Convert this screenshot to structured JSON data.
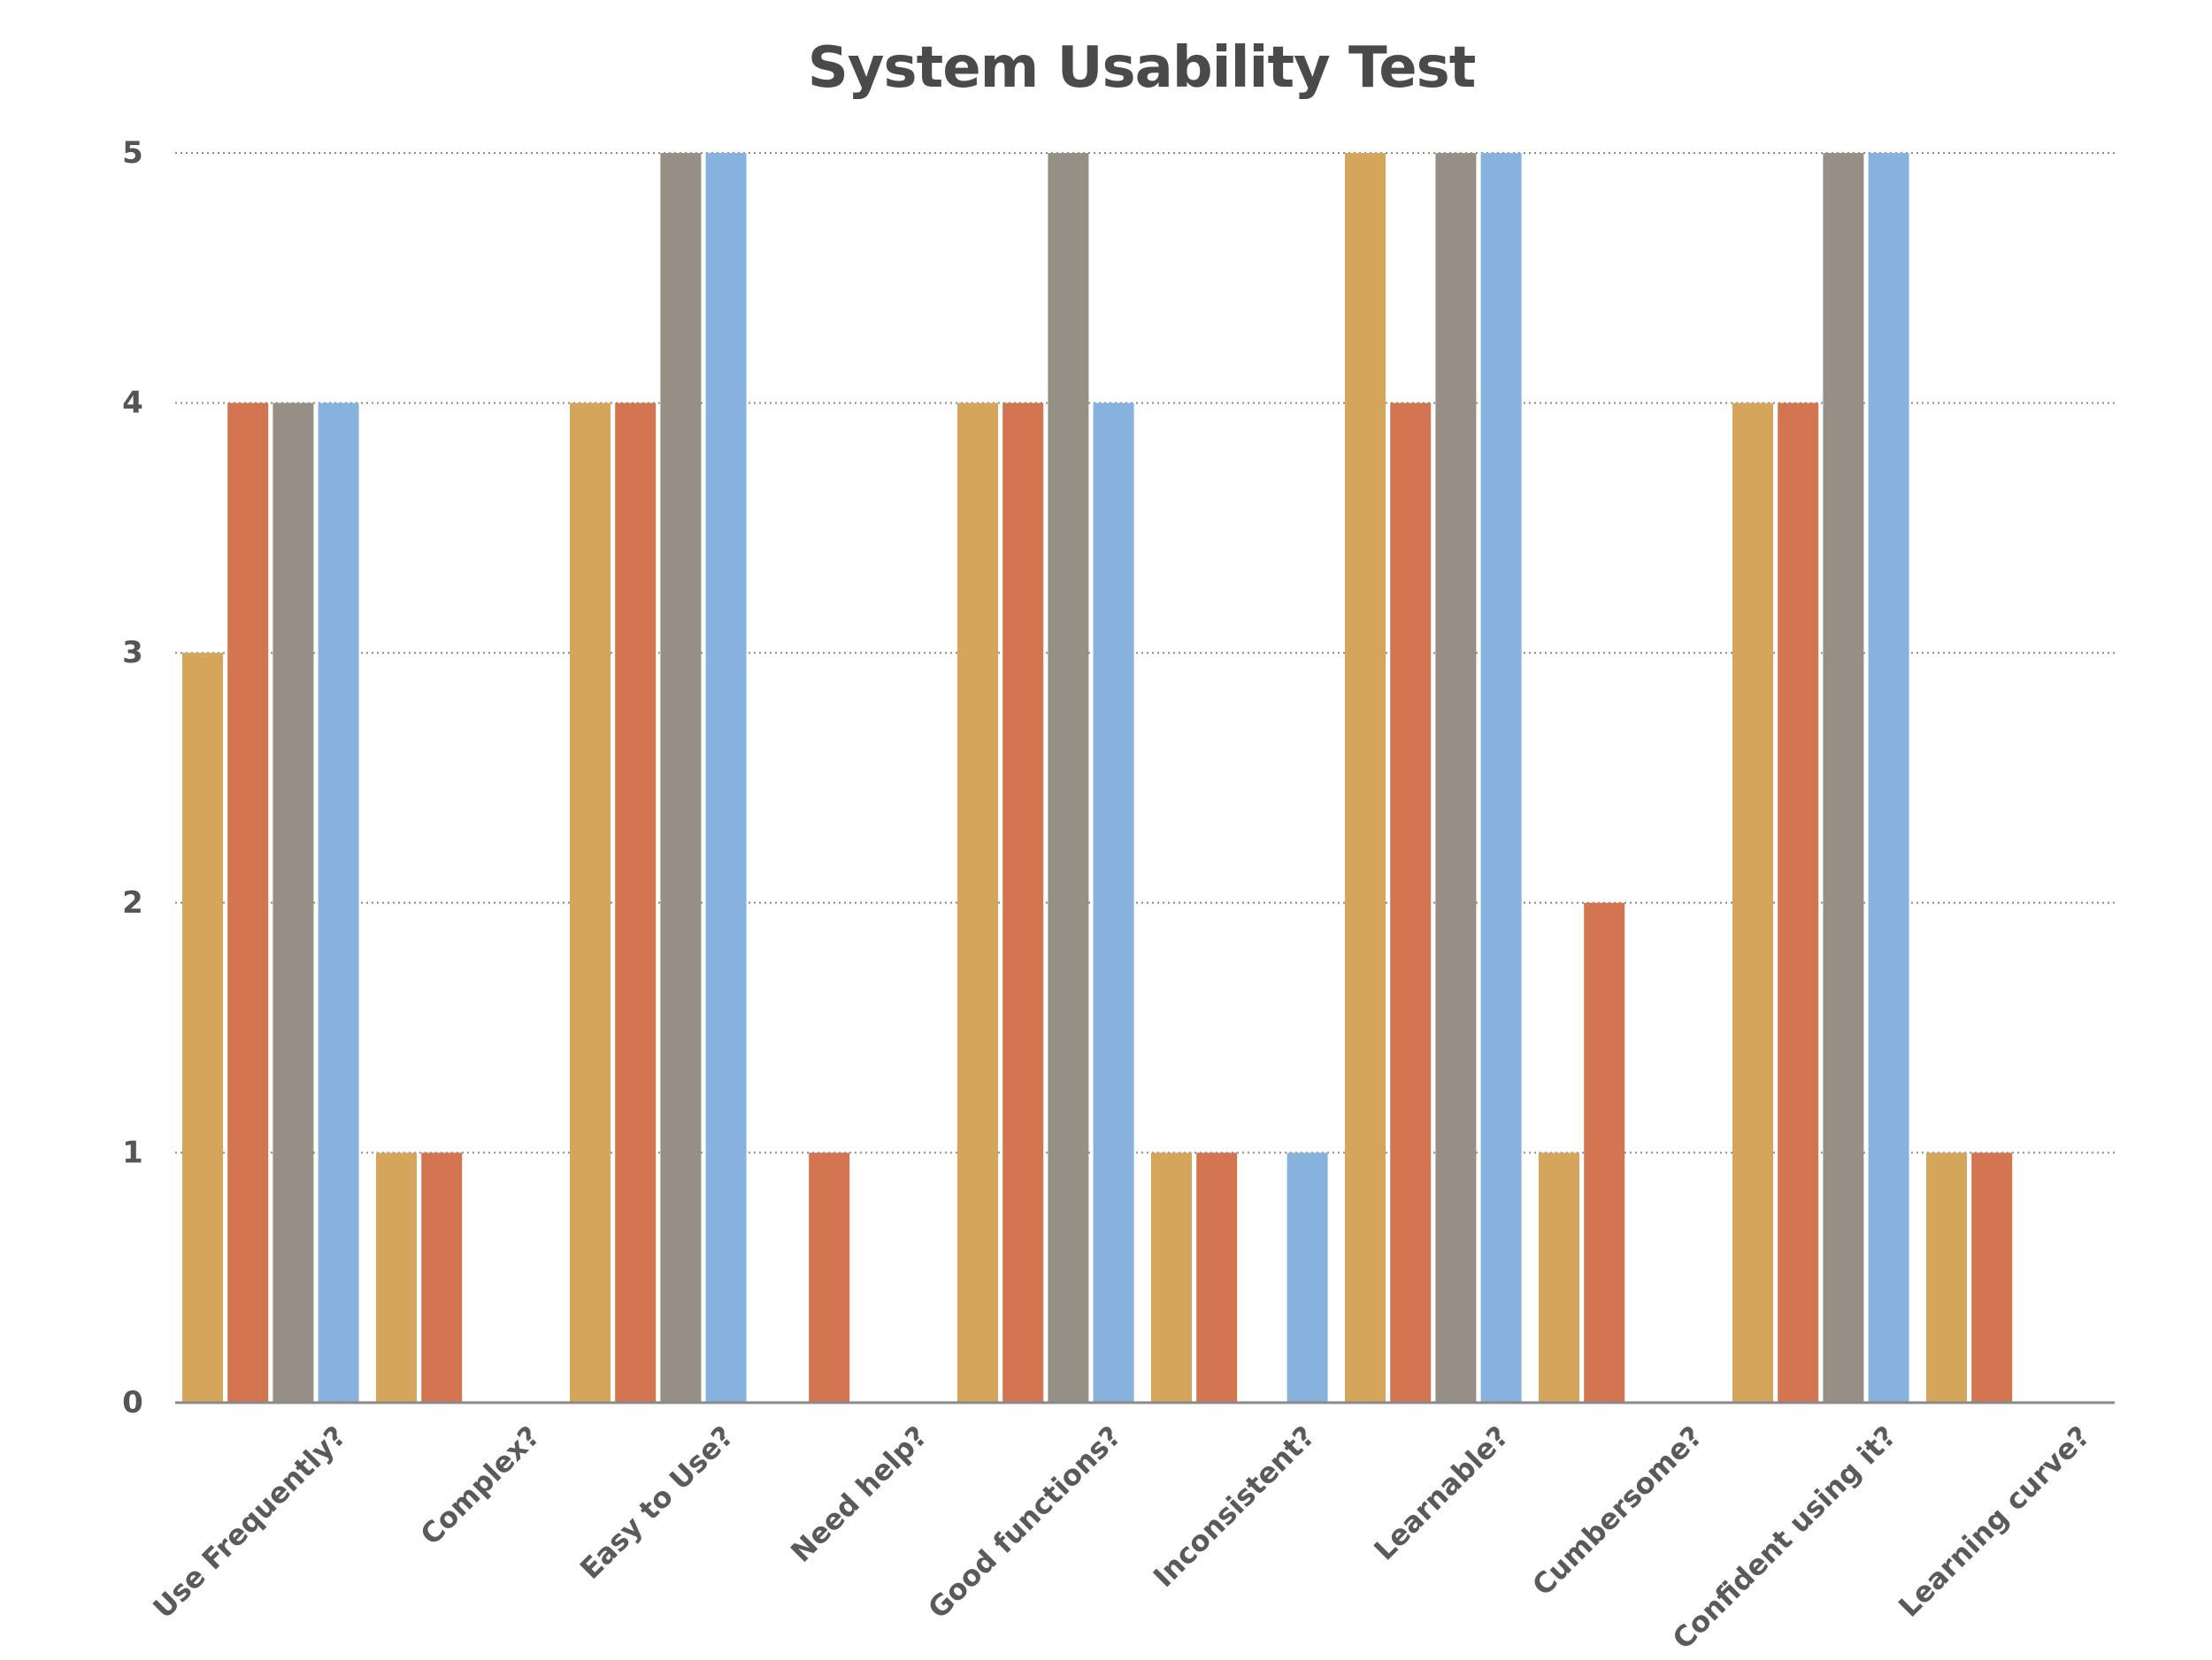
{
  "chart_data": {
    "type": "bar",
    "title": "System Usability Test",
    "xlabel": "",
    "ylabel": "",
    "ylim": [
      0,
      5
    ],
    "yticks": [
      0,
      1,
      2,
      3,
      4,
      5
    ],
    "grid": true,
    "categories": [
      "Use Frequently?",
      "Complex?",
      "Easy to Use?",
      "Need help?",
      "Good functions?",
      "Inconsistent?",
      "Learnable?",
      "Cumbersome?",
      "Confident using it?",
      "Learning curve?"
    ],
    "series": [
      {
        "color": "#d4a55a",
        "values": [
          3,
          1,
          4,
          0,
          4,
          1,
          5,
          1,
          4,
          1
        ]
      },
      {
        "color": "#d27550",
        "values": [
          4,
          1,
          4,
          1,
          4,
          1,
          4,
          2,
          4,
          1
        ]
      },
      {
        "color": "#968f85",
        "values": [
          4,
          0,
          5,
          0,
          5,
          0,
          5,
          0,
          5,
          0
        ]
      },
      {
        "color": "#88b2de",
        "values": [
          4,
          0,
          5,
          0,
          4,
          1,
          5,
          0,
          5,
          0
        ]
      }
    ]
  }
}
